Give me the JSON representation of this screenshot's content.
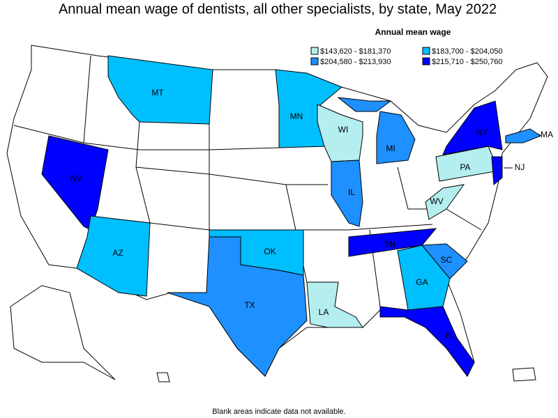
{
  "title": "Annual mean wage of dentists, all other specialists, by state, May 2022",
  "legend": {
    "title": "Annual mean wage",
    "items": [
      {
        "label": "$143,620 - $181,370",
        "color": "#b4eeee"
      },
      {
        "label": "$183,700 - $204,050",
        "color": "#00bfff"
      },
      {
        "label": "$204,580 - $213,930",
        "color": "#1e90ff"
      },
      {
        "label": "$215,710 - $250,760",
        "color": "#0000ff"
      }
    ]
  },
  "states": [
    {
      "label": "MT",
      "class": 1
    },
    {
      "label": "MN",
      "class": 1
    },
    {
      "label": "WI",
      "class": 0
    },
    {
      "label": "MI",
      "class": 2
    },
    {
      "label": "IL",
      "class": 2
    },
    {
      "label": "NV",
      "class": 3
    },
    {
      "label": "AZ",
      "class": 1
    },
    {
      "label": "OK",
      "class": 1
    },
    {
      "label": "TX",
      "class": 2
    },
    {
      "label": "LA",
      "class": 0
    },
    {
      "label": "TN",
      "class": 3
    },
    {
      "label": "GA",
      "class": 1
    },
    {
      "label": "SC",
      "class": 2
    },
    {
      "label": "FL",
      "class": 3
    },
    {
      "label": "WV",
      "class": 0
    },
    {
      "label": "PA",
      "class": 0
    },
    {
      "label": "NY",
      "class": 3
    },
    {
      "label": "NJ",
      "class": 3
    },
    {
      "label": "MA",
      "class": 2
    }
  ],
  "footnote": "Blank areas indicate data not available."
}
